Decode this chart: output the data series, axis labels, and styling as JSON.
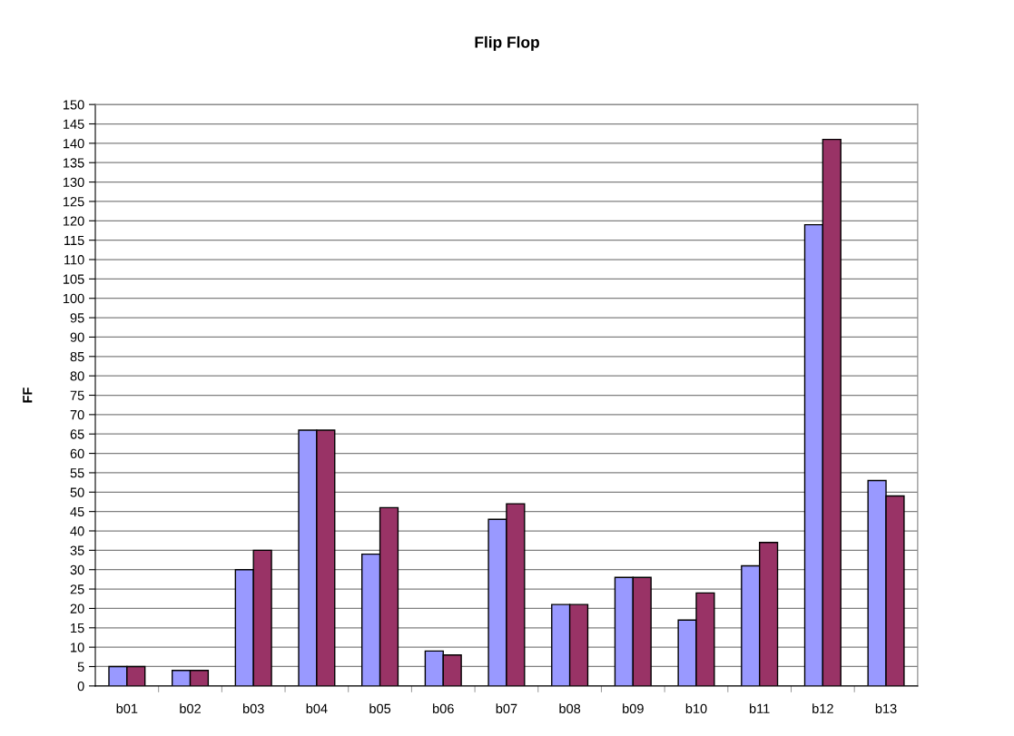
{
  "chart_data": {
    "type": "bar",
    "title": "Flip Flop",
    "ylabel": "FF",
    "categories": [
      "b01",
      "b02",
      "b03",
      "b04",
      "b05",
      "b06",
      "b07",
      "b08",
      "b09",
      "b10",
      "b11",
      "b12",
      "b13"
    ],
    "series": [
      {
        "color": "#9999ff",
        "values": [
          5,
          4,
          30,
          66,
          34,
          9,
          43,
          21,
          28,
          17,
          31,
          119,
          53
        ]
      },
      {
        "color": "#993366",
        "values": [
          5,
          4,
          35,
          66,
          46,
          8,
          47,
          21,
          28,
          24,
          37,
          141,
          49
        ]
      }
    ],
    "ylim": [
      0,
      150
    ],
    "yticks": [
      0,
      5,
      10,
      15,
      20,
      25,
      30,
      35,
      40,
      45,
      50,
      55,
      60,
      65,
      70,
      75,
      80,
      85,
      90,
      95,
      100,
      105,
      110,
      115,
      120,
      125,
      130,
      135,
      140,
      145,
      150
    ],
    "grid": "y"
  }
}
